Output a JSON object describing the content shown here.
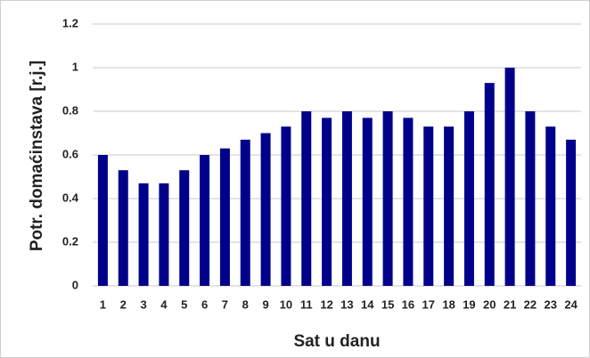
{
  "chart_data": {
    "type": "bar",
    "x_label": "Sat u danu",
    "y_label": "Potr. domaćinstava [r.j.]",
    "categories": [
      "1",
      "2",
      "3",
      "4",
      "5",
      "6",
      "7",
      "8",
      "9",
      "10",
      "11",
      "12",
      "13",
      "14",
      "15",
      "16",
      "17",
      "18",
      "19",
      "20",
      "21",
      "22",
      "23",
      "24"
    ],
    "values": [
      0.6,
      0.53,
      0.47,
      0.47,
      0.53,
      0.6,
      0.63,
      0.67,
      0.7,
      0.73,
      0.8,
      0.77,
      0.8,
      0.77,
      0.8,
      0.77,
      0.73,
      0.73,
      0.8,
      0.93,
      1,
      0.8,
      0.73,
      0.67
    ],
    "color": "#00008b",
    "ylim": [
      0,
      1.2
    ],
    "yticks": [
      0,
      0.2,
      0.4,
      0.6,
      0.8,
      1,
      1.2
    ],
    "grid": true
  }
}
